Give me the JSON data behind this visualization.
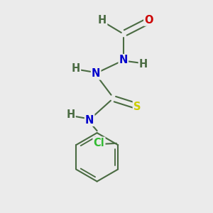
{
  "background_color": "#ebebeb",
  "bond_color": "#4a6b42",
  "bond_width": 1.5,
  "atom_colors": {
    "C": "#4a6b42",
    "H": "#4a6b42",
    "N": "#0000cc",
    "O": "#cc0000",
    "S": "#cccc00",
    "Cl": "#33bb33"
  },
  "font_size": 10.5,
  "fig_size": [
    3.0,
    3.0
  ],
  "dpi": 100
}
